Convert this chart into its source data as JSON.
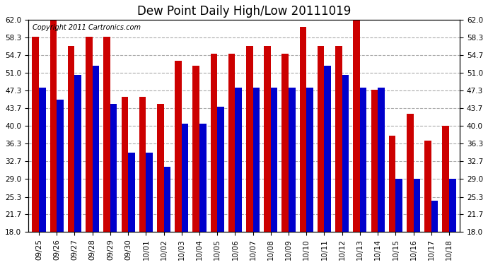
{
  "title": "Dew Point Daily High/Low 20111019",
  "copyright": "Copyright 2011 Cartronics.com",
  "categories": [
    "09/25",
    "09/26",
    "09/27",
    "09/28",
    "09/29",
    "09/30",
    "10/01",
    "10/02",
    "10/03",
    "10/04",
    "10/05",
    "10/06",
    "10/07",
    "10/08",
    "10/09",
    "10/10",
    "10/11",
    "10/12",
    "10/13",
    "10/14",
    "10/15",
    "10/16",
    "10/17",
    "10/18"
  ],
  "highs": [
    58.5,
    62.0,
    56.5,
    58.5,
    58.5,
    46.0,
    46.0,
    44.5,
    53.5,
    52.5,
    55.0,
    55.0,
    56.5,
    56.5,
    55.0,
    60.5,
    56.5,
    56.5,
    62.0,
    47.5,
    38.0,
    42.5,
    37.0,
    40.0
  ],
  "lows": [
    48.0,
    45.5,
    50.5,
    52.5,
    44.5,
    34.5,
    34.5,
    31.5,
    40.5,
    40.5,
    44.0,
    48.0,
    48.0,
    48.0,
    48.0,
    48.0,
    52.5,
    50.5,
    48.0,
    48.0,
    29.0,
    29.0,
    24.5,
    29.0
  ],
  "yticks": [
    18.0,
    21.7,
    25.3,
    29.0,
    32.7,
    36.3,
    40.0,
    43.7,
    47.3,
    51.0,
    54.7,
    58.3,
    62.0
  ],
  "ylim": [
    18.0,
    62.0
  ],
  "bar_color_high": "#cc0000",
  "bar_color_low": "#0000cc",
  "bg_color": "#ffffff",
  "plot_bg_color": "#ffffff",
  "grid_color": "#aaaaaa",
  "title_fontsize": 12,
  "tick_fontsize": 7.5,
  "bar_width": 0.38,
  "copyright_fontsize": 7
}
